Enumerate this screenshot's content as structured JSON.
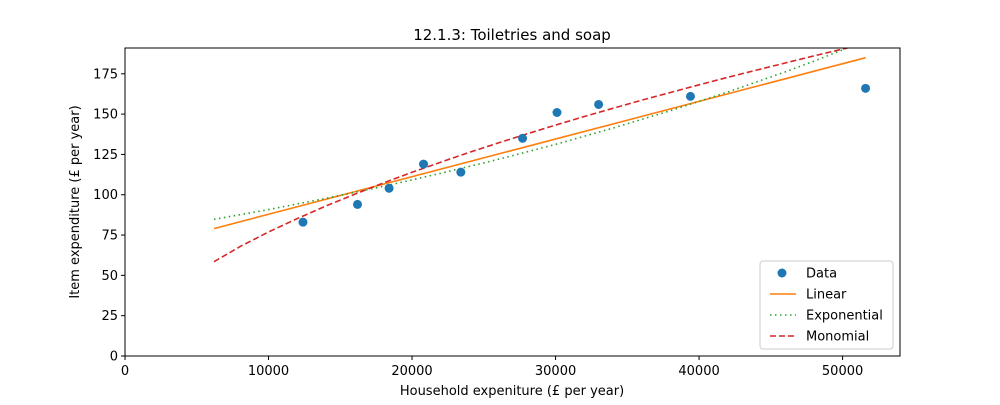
{
  "chart_data": {
    "type": "line",
    "title": "12.1.3: Toiletries and soap",
    "xlabel": "Household expeniture (£ per year)",
    "ylabel": "Item expenditure (£ per year)",
    "xlim": [
      0,
      54000
    ],
    "ylim": [
      0,
      191
    ],
    "x_ticks": [
      0,
      10000,
      20000,
      30000,
      40000,
      50000
    ],
    "y_ticks": [
      0,
      25,
      50,
      75,
      100,
      125,
      150,
      175
    ],
    "grid": false,
    "legend_position": "lower-right",
    "series": [
      {
        "name": "Data",
        "kind": "scatter",
        "color": "#1f77b4",
        "points": [
          [
            12400,
            83
          ],
          [
            16200,
            94
          ],
          [
            18400,
            104
          ],
          [
            20800,
            119
          ],
          [
            23400,
            114
          ],
          [
            27700,
            135
          ],
          [
            30100,
            151
          ],
          [
            33000,
            156
          ],
          [
            39400,
            161
          ],
          [
            51600,
            166
          ]
        ]
      },
      {
        "name": "Linear",
        "kind": "line",
        "style": "solid",
        "color": "#ff7f0e",
        "points": [
          [
            6200,
            79
          ],
          [
            51600,
            185
          ]
        ]
      },
      {
        "name": "Exponential",
        "kind": "line",
        "style": "dotted",
        "color": "#2ca02c",
        "points": [
          [
            6200,
            84.8
          ],
          [
            10000,
            90.8
          ],
          [
            14000,
            97.8
          ],
          [
            18000,
            105.2
          ],
          [
            22000,
            113.3
          ],
          [
            26000,
            121.9
          ],
          [
            30000,
            131.2
          ],
          [
            34000,
            141.3
          ],
          [
            38000,
            152.1
          ],
          [
            42000,
            163.7
          ],
          [
            46000,
            176.2
          ],
          [
            48000,
            182.8
          ],
          [
            51600,
            195.5
          ]
        ]
      },
      {
        "name": "Monomial",
        "kind": "line",
        "style": "dashed",
        "color": "#d62728",
        "points": [
          [
            6200,
            58.5
          ],
          [
            8000,
            67.8
          ],
          [
            10000,
            76.9
          ],
          [
            12000,
            85.2
          ],
          [
            14000,
            93.0
          ],
          [
            16000,
            100.3
          ],
          [
            18000,
            107.3
          ],
          [
            20000,
            113.9
          ],
          [
            22000,
            120.2
          ],
          [
            24000,
            126.3
          ],
          [
            26000,
            132.1
          ],
          [
            28000,
            137.7
          ],
          [
            30000,
            143.2
          ],
          [
            32000,
            148.5
          ],
          [
            34000,
            153.6
          ],
          [
            36000,
            158.6
          ],
          [
            38000,
            163.4
          ],
          [
            40000,
            168.2
          ],
          [
            42000,
            172.8
          ],
          [
            44000,
            177.3
          ],
          [
            46000,
            181.7
          ],
          [
            48000,
            186.1
          ],
          [
            51600,
            193.7
          ]
        ]
      }
    ]
  }
}
